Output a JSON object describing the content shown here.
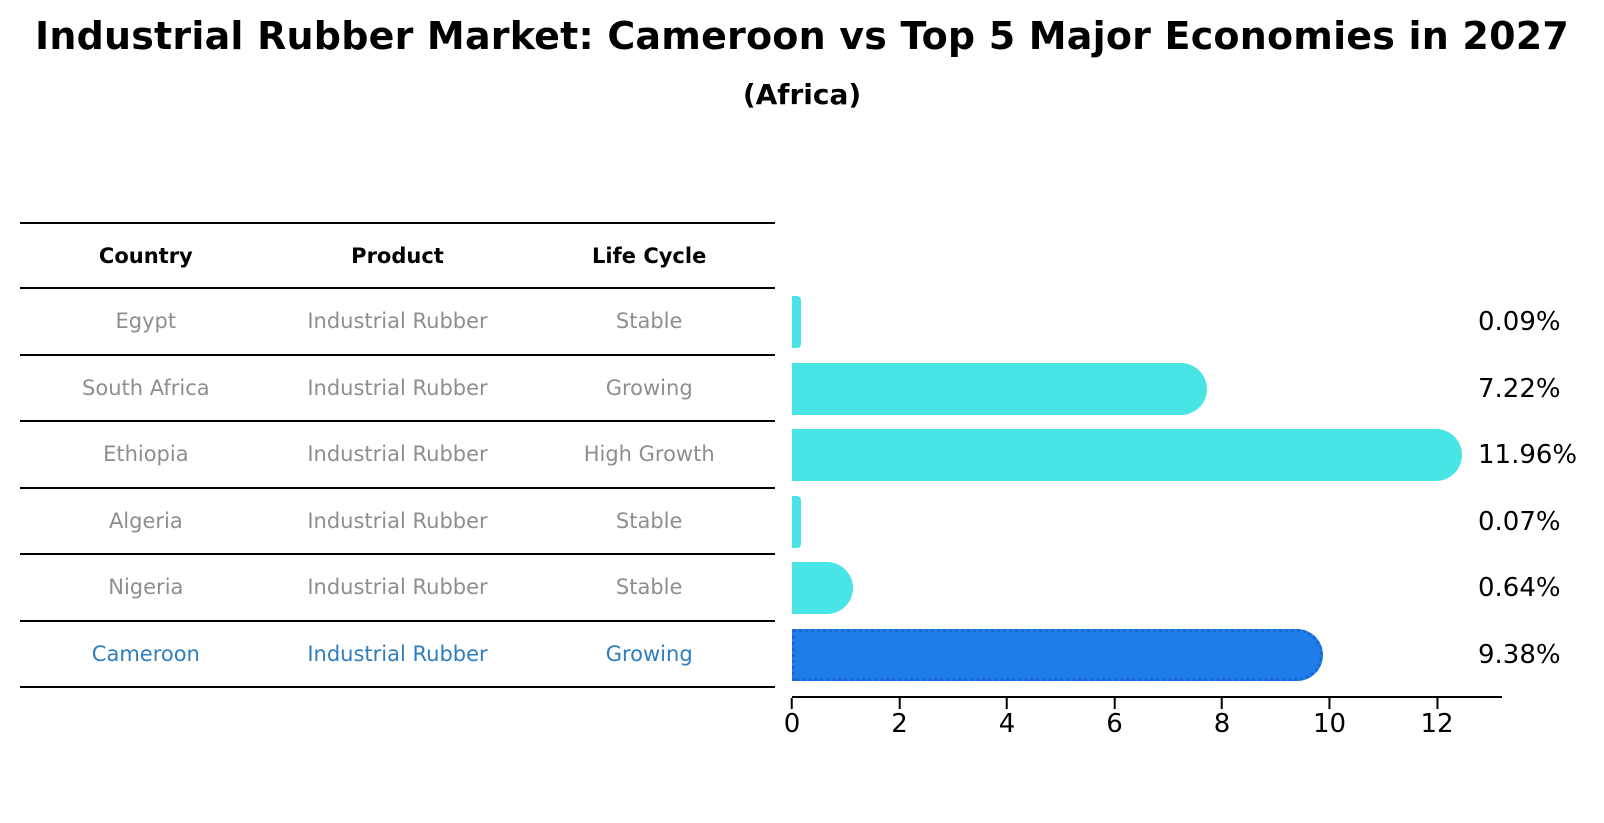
{
  "title": "Industrial Rubber Market: Cameroon vs Top 5 Major Economies in 2027",
  "subtitle": "(Africa)",
  "table": {
    "headers": [
      "Country",
      "Product",
      "Life Cycle"
    ],
    "rows": [
      {
        "country": "Egypt",
        "product": "Industrial Rubber",
        "life_cycle": "Stable",
        "highlight": false
      },
      {
        "country": "South Africa",
        "product": "Industrial Rubber",
        "life_cycle": "Growing",
        "highlight": false
      },
      {
        "country": "Ethiopia",
        "product": "Industrial Rubber",
        "life_cycle": "High Growth",
        "highlight": false
      },
      {
        "country": "Algeria",
        "product": "Industrial Rubber",
        "life_cycle": "Stable",
        "highlight": false
      },
      {
        "country": "Nigeria",
        "product": "Industrial Rubber",
        "life_cycle": "Stable",
        "highlight": false
      },
      {
        "country": "Cameroon",
        "product": "Industrial Rubber",
        "life_cycle": "Growing",
        "highlight": true
      }
    ]
  },
  "chart_data": {
    "type": "bar",
    "orientation": "horizontal",
    "title": "Industrial Rubber Market: Cameroon vs Top 5 Major Economies in 2027",
    "subtitle": "(Africa)",
    "categories": [
      "Egypt",
      "South Africa",
      "Ethiopia",
      "Algeria",
      "Nigeria",
      "Cameroon"
    ],
    "values": [
      0.09,
      7.22,
      11.96,
      0.07,
      0.64,
      9.38
    ],
    "value_labels": [
      "0.09%",
      "7.22%",
      "11.96%",
      "0.07%",
      "0.64%",
      "9.38%"
    ],
    "x_ticks": [
      0,
      2,
      4,
      6,
      8,
      10,
      12
    ],
    "xlim": [
      0,
      12
    ],
    "highlight_index": 5,
    "grid": false,
    "legend": false
  },
  "colors": {
    "bar-fill": "#49E5E5",
    "hl-fill": "#1E7DE8",
    "hl-border": "#1867D2",
    "accent-text": "#2E7EBF",
    "table-text": "#8e8e8e",
    "axis": "#000000"
  }
}
